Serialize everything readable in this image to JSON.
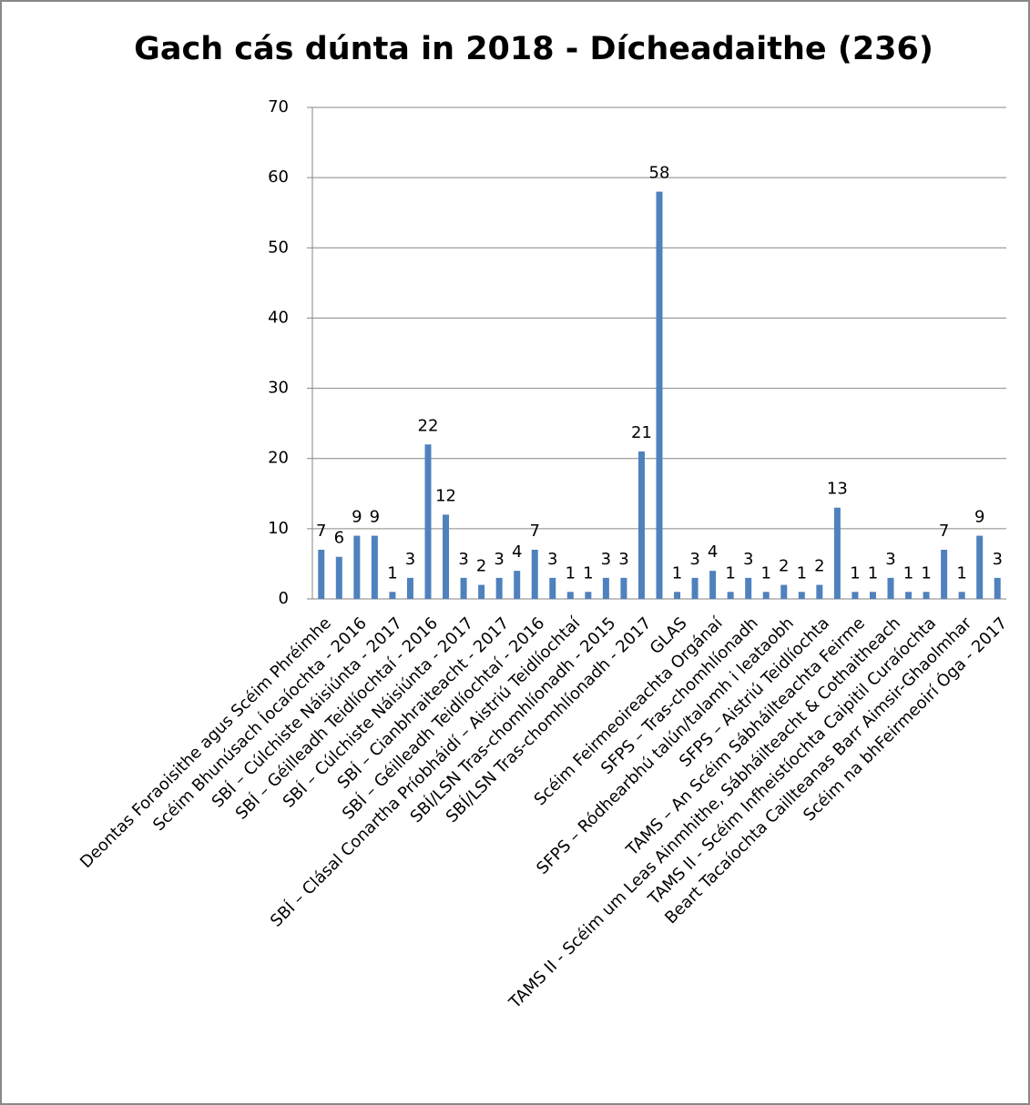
{
  "chart_data": {
    "type": "bar",
    "title": "Gach cás dúnta in 2018 - Dícheadaithe (236)",
    "categories": [
      "Deontas Foraoisithe agus Scéim Phréimhe",
      null,
      "Scéim Bhunúsach Íocaíochta - 2016",
      null,
      "SBÍ – Cúlchiste Náisiúnta - 2017",
      null,
      "SBÍ – Géilleadh Teidlíochtaí - 2016",
      null,
      "SBÍ – Cúlchiste Náisiúnta - 2017",
      null,
      "SBÍ – Cianbhraiteacht - 2017",
      null,
      "SBÍ – Géilleadh Teidlíochtaí - 2016",
      null,
      "SBÍ – Clásal Conartha Príobháidí – Aistriú Teidlíochtaí",
      null,
      "SBÍ/LSN Tras-chomhlíonadh - 2015",
      null,
      "SBÍ/LSN Tras-chomhlíonadh - 2017",
      null,
      "GLAS",
      null,
      "Scéim Feirmeoireachta Orgánaí",
      null,
      "SFPS – Tras-chomhlíonadh",
      null,
      "SFPS – Ródhearbhú talún/talamh i leataobh",
      null,
      "SFPS – Aistriú Teidlíochta",
      null,
      "TAMS – An Scéim Sábháilteachta Feirme",
      null,
      "TAMS II - Scéim um Leas Ainmhithe, Sábháilteacht & Cothaitheach",
      null,
      "TAMS II - Scéim Infheistíochta Caipitil Curaíochta",
      null,
      "Beart Tacaíochta Caillteanas Barr Aimsir-Ghaolmhar",
      null,
      "Scéim na bhFeirmeoirí Óga - 2017"
    ],
    "values": [
      7,
      6,
      9,
      9,
      1,
      3,
      22,
      12,
      3,
      2,
      3,
      4,
      7,
      3,
      1,
      1,
      3,
      3,
      21,
      58,
      1,
      3,
      4,
      1,
      3,
      1,
      2,
      1,
      2,
      13,
      1,
      1,
      3,
      1,
      1,
      7,
      1,
      9,
      3
    ],
    "color": "#4f81bd",
    "ylim": [
      0,
      70
    ],
    "yticks": [
      0,
      10,
      20,
      30,
      40,
      50,
      60,
      70
    ],
    "grid": true
  }
}
